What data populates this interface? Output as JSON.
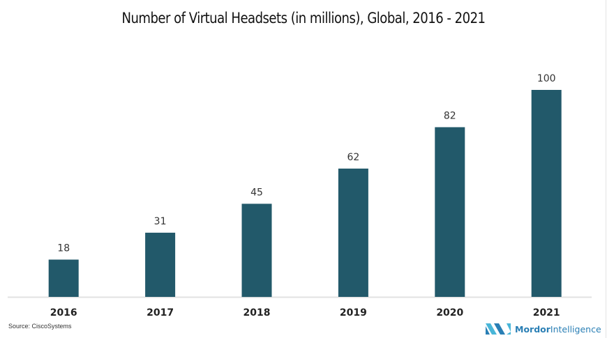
{
  "chart_data": {
    "type": "bar",
    "title": "Number of Virtual Headsets (in millions), Global, 2016 - 2021",
    "categories": [
      "2016",
      "2017",
      "2018",
      "2019",
      "2020",
      "2021"
    ],
    "values": [
      18,
      31,
      45,
      62,
      82,
      100
    ],
    "data_labels": [
      "18",
      "31",
      "45",
      "62",
      "82",
      "100"
    ],
    "xlabel": "",
    "ylabel": "",
    "ylim": [
      0,
      100
    ],
    "grid": false,
    "legend": "none",
    "bar_color": "#22596a"
  },
  "footer": {
    "source": "Source: CiscoSystems",
    "logo_bold": "Mordor",
    "logo_light": "Intelligence"
  }
}
